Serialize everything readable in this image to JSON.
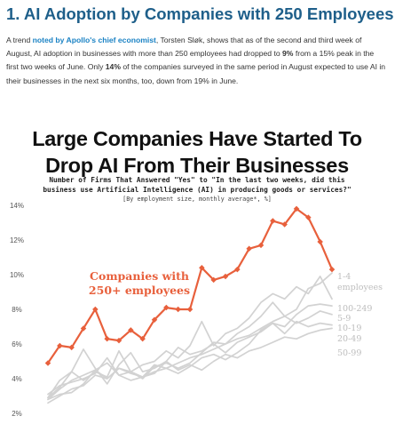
{
  "heading": "1. AI Adoption by Companies with 250 Employees",
  "paragraph": {
    "p1": "A trend ",
    "link": "noted by Apollo's chief economist",
    "p2": ", Torsten Sløk, shows that as of the second and third week of August, AI adoption in businesses with more than 250 employees had dropped to ",
    "b1": "9%",
    "p3": " from a 15% peak in the first two weeks of June. Only ",
    "b2": "14%",
    "p4": " of the companies surveyed in the same period in August expected to use AI in their businesses in the next six months, too, down from 19% in June."
  },
  "chart_data": {
    "type": "line",
    "title": [
      "Large Companies Have Started To",
      "Drop AI From Their Businesses"
    ],
    "subtitle": [
      "Number of Firms That Answered \"Yes\" to \"In the last two weeks, did this",
      "business use Artificial Intelligence (AI) in producing goods or services?\""
    ],
    "note": "[By employment size, monthly average*, %]",
    "ylim": [
      2,
      14
    ],
    "yticks": [
      "2%",
      "4%",
      "6%",
      "8%",
      "10%",
      "12%",
      "14%"
    ],
    "grid": false,
    "colors": {
      "highlight": "#e8603c",
      "muted": "#d2d2d2",
      "muted_label": "#bdbdbd",
      "title": "#111111"
    },
    "highlight_label": [
      "Companies with",
      "250+ employees"
    ],
    "series": [
      {
        "name": "250+",
        "highlight": true,
        "values": [
          4.9,
          5.9,
          5.8,
          6.9,
          8.0,
          6.3,
          6.2,
          6.8,
          6.3,
          7.4,
          8.1,
          8.0,
          8.0,
          10.4,
          9.7,
          9.9,
          10.3,
          11.5,
          11.7,
          13.1,
          12.9,
          13.8,
          13.3,
          11.9,
          10.3
        ]
      },
      {
        "name": "1-4",
        "label": [
          "1-4",
          "employees"
        ],
        "values": [
          2.8,
          3.4,
          3.9,
          4.2,
          4.5,
          4.0,
          4.6,
          4.3,
          4.1,
          4.8,
          4.6,
          4.9,
          5.2,
          5.4,
          5.7,
          6.0,
          6.3,
          6.5,
          6.9,
          7.3,
          7.6,
          8.0,
          9.2,
          9.5,
          10.1
        ]
      },
      {
        "name": "100-249",
        "label": [
          "100-249"
        ],
        "values": [
          2.9,
          3.5,
          4.4,
          3.9,
          4.4,
          4.1,
          5.6,
          4.4,
          4.8,
          5.0,
          5.6,
          5.2,
          5.9,
          7.3,
          5.9,
          6.6,
          6.9,
          7.5,
          8.4,
          8.9,
          8.6,
          9.3,
          8.9,
          9.9,
          8.6
        ]
      },
      {
        "name": "5-9",
        "label": [
          "5-9"
        ],
        "values": [
          2.9,
          3.9,
          4.4,
          5.7,
          4.6,
          3.7,
          4.8,
          5.5,
          4.4,
          4.6,
          5.0,
          5.8,
          5.4,
          5.6,
          6.0,
          5.5,
          6.1,
          6.4,
          6.7,
          7.2,
          7.0,
          7.7,
          8.2,
          8.3,
          8.2
        ]
      },
      {
        "name": "10-19",
        "label": [
          "10-19"
        ],
        "values": [
          3.1,
          3.6,
          3.8,
          4.0,
          4.3,
          5.2,
          4.2,
          4.4,
          4.0,
          4.7,
          4.9,
          4.6,
          4.9,
          5.5,
          6.1,
          6.0,
          6.6,
          7.0,
          7.6,
          8.4,
          7.6,
          7.2,
          7.5,
          7.9,
          7.7
        ]
      },
      {
        "name": "20-49",
        "label": [
          "20-49"
        ],
        "values": [
          2.6,
          3.0,
          3.4,
          3.6,
          4.2,
          4.0,
          4.6,
          4.4,
          4.1,
          4.4,
          4.6,
          4.3,
          4.7,
          5.2,
          5.4,
          5.1,
          5.5,
          6.0,
          6.8,
          7.2,
          6.6,
          7.3,
          7.0,
          7.2,
          7.1
        ]
      },
      {
        "name": "50-99",
        "label": [
          "50-99"
        ],
        "values": [
          2.8,
          3.1,
          3.2,
          3.7,
          4.5,
          4.9,
          4.2,
          3.9,
          4.1,
          4.3,
          5.0,
          4.5,
          4.8,
          4.5,
          5.0,
          5.4,
          5.2,
          5.6,
          5.8,
          6.1,
          6.4,
          6.3,
          6.6,
          6.8,
          6.9
        ]
      }
    ]
  }
}
